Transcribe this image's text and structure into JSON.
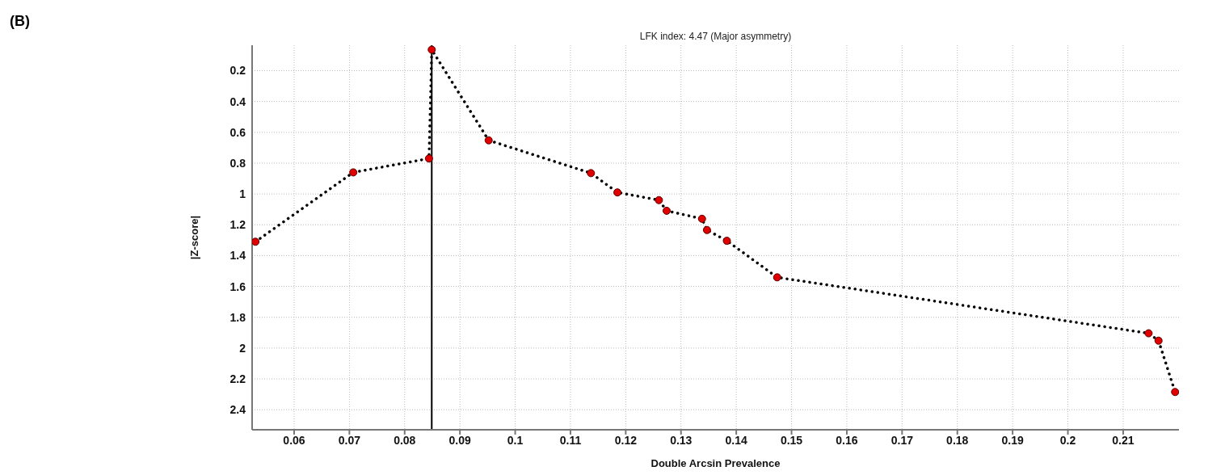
{
  "chart_data": {
    "type": "line",
    "title": "LFK index: 4.47 (Major asymmetry)",
    "xlabel": "Double Arcsin Prevalence",
    "ylabel": "|Z-score|",
    "annotations": [
      "(B)"
    ],
    "x": [
      0.053,
      0.0707,
      0.0844,
      0.0849,
      0.0952,
      0.1137,
      0.1185,
      0.126,
      0.1274,
      0.1338,
      0.1347,
      0.1383,
      0.1474,
      0.2146,
      0.2164,
      0.2194
    ],
    "series": [
      {
        "color": "#000000",
        "colors": [
          "#e00000",
          "#e00000",
          "#e00000",
          "#e00000",
          "#e00000",
          "#e00000",
          "#e00000",
          "#e00000",
          "#e00000",
          "#e00000",
          "#e00000",
          "#e00000",
          "#e00000",
          "#e00000",
          "#e00000",
          "#e00000"
        ],
        "values": [
          1.31,
          0.86,
          0.77,
          0.064,
          0.652,
          0.865,
          0.99,
          1.04,
          1.109,
          1.161,
          1.234,
          1.304,
          1.541,
          1.904,
          1.952,
          2.285
        ]
      }
    ],
    "xlim": [
      0.0524,
      0.2201
    ],
    "xticks": [
      0.06,
      0.07,
      0.08,
      0.09,
      0.1,
      0.11,
      0.12,
      0.13,
      0.14,
      0.15,
      0.16,
      0.17,
      0.18,
      0.19,
      0.2,
      0.21
    ],
    "ylim": [
      2.53,
      0.035
    ],
    "yticks": [
      0.2,
      0.4,
      0.6,
      0.8,
      1,
      1.2,
      1.4,
      1.6,
      1.8,
      2,
      2.2,
      2.4
    ],
    "ref_lines": [
      {
        "axis": "x",
        "value": 0.0849,
        "color": "#000000",
        "line_style": "solid"
      }
    ],
    "grid": true,
    "marker": "circle",
    "line_style": "dotted"
  }
}
